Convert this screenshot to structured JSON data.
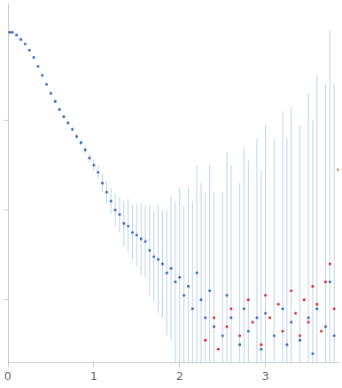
{
  "chart_data": {
    "type": "scatter",
    "xlim": [
      0,
      3.85
    ],
    "xticks": [
      0,
      1,
      2,
      3
    ],
    "ylim": [
      -0.7,
      3.3
    ],
    "yticks": [
      0,
      1,
      2
    ],
    "grid": false,
    "tick_labels": "x",
    "series": [
      {
        "color": "#3d6fc4",
        "marker": "circle",
        "x": [
          0.02,
          0.05,
          0.1,
          0.15,
          0.2,
          0.25,
          0.3,
          0.35,
          0.4,
          0.45,
          0.5,
          0.55,
          0.6,
          0.65,
          0.7,
          0.75,
          0.8,
          0.85,
          0.9,
          0.95,
          1.0,
          1.05,
          1.1,
          1.15,
          1.2,
          1.25,
          1.3,
          1.35,
          1.4,
          1.45,
          1.5,
          1.55,
          1.6,
          1.65,
          1.7,
          1.75,
          1.8,
          1.85,
          1.9,
          1.95,
          2.0,
          2.05,
          2.1,
          2.15,
          2.2,
          2.25,
          2.3,
          2.35,
          2.4,
          2.5,
          2.55,
          2.6,
          2.7,
          2.75,
          2.8,
          2.9,
          2.95,
          3.0,
          3.1,
          3.2,
          3.25,
          3.3,
          3.4,
          3.5,
          3.55,
          3.6,
          3.7,
          3.75,
          3.8
        ],
        "values": [
          2.98,
          2.98,
          2.95,
          2.9,
          2.85,
          2.78,
          2.7,
          2.6,
          2.5,
          2.4,
          2.3,
          2.21,
          2.12,
          2.04,
          1.97,
          1.9,
          1.82,
          1.75,
          1.67,
          1.58,
          1.5,
          1.42,
          1.3,
          1.2,
          1.1,
          1.0,
          0.95,
          0.85,
          0.82,
          0.75,
          0.72,
          0.68,
          0.65,
          0.55,
          0.48,
          0.45,
          0.4,
          0.3,
          0.35,
          0.2,
          0.25,
          0.05,
          0.15,
          -0.1,
          0.3,
          0.0,
          -0.2,
          0.1,
          -0.3,
          -0.4,
          0.05,
          -0.2,
          -0.5,
          -0.1,
          -0.35,
          -0.2,
          -0.55,
          -0.15,
          -0.4,
          -0.1,
          -0.5,
          -0.25,
          -0.45,
          -0.2,
          -0.6,
          -0.1,
          -0.3,
          0.2,
          -0.4
        ],
        "error": [
          0.01,
          0.01,
          0.01,
          0.01,
          0.01,
          0.01,
          0.01,
          0.01,
          0.01,
          0.01,
          0.02,
          0.02,
          0.02,
          0.02,
          0.02,
          0.02,
          0.03,
          0.03,
          0.04,
          0.05,
          0.06,
          0.08,
          0.1,
          0.12,
          0.15,
          0.18,
          0.2,
          0.25,
          0.3,
          0.3,
          0.35,
          0.4,
          0.4,
          0.5,
          0.5,
          0.6,
          0.6,
          0.7,
          0.8,
          0.9,
          1.0,
          1.0,
          1.1,
          1.2,
          1.2,
          1.3,
          1.4,
          1.4,
          1.5,
          1.6,
          1.6,
          1.7,
          1.8,
          1.8,
          1.9,
          2.0,
          2.0,
          2.1,
          2.2,
          2.2,
          2.3,
          2.4,
          2.4,
          2.5,
          2.6,
          2.6,
          2.7,
          2.8,
          2.8
        ]
      },
      {
        "color": "#e0303a",
        "marker": "circle",
        "x": [
          2.3,
          2.4,
          2.45,
          2.55,
          2.6,
          2.7,
          2.8,
          2.85,
          2.95,
          3.0,
          3.05,
          3.15,
          3.2,
          3.3,
          3.35,
          3.4,
          3.45,
          3.5,
          3.55,
          3.6,
          3.65,
          3.7,
          3.75,
          3.8,
          3.85
        ],
        "values": [
          -0.45,
          -0.2,
          -0.55,
          -0.3,
          -0.1,
          -0.4,
          0.0,
          -0.25,
          -0.5,
          0.05,
          -0.2,
          -0.05,
          -0.35,
          0.1,
          -0.15,
          -0.4,
          0.0,
          -0.25,
          0.15,
          -0.05,
          -0.35,
          0.2,
          0.4,
          -0.1,
          1.45
        ]
      }
    ]
  }
}
